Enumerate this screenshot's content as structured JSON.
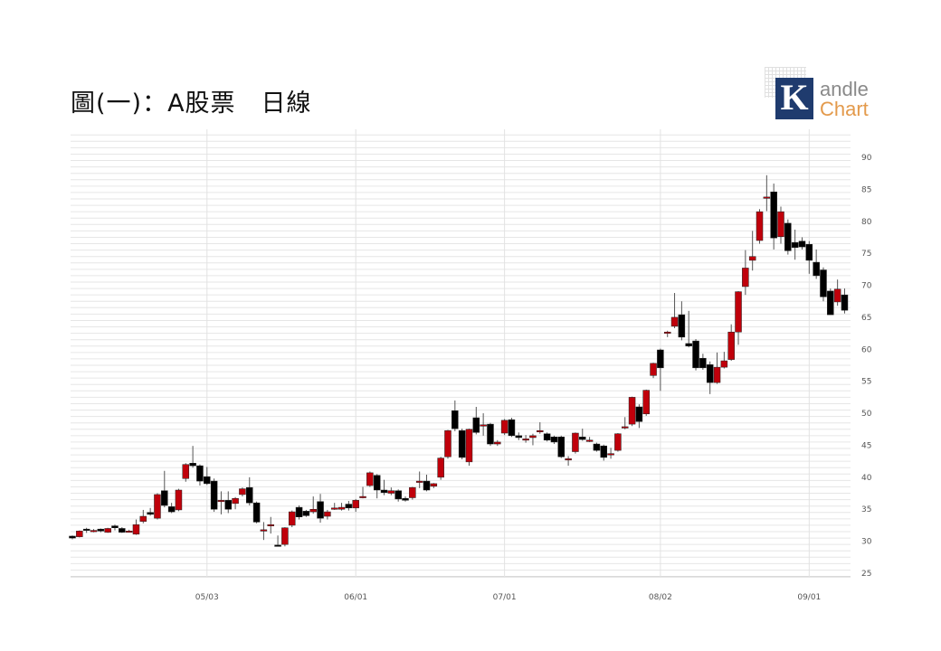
{
  "title": "圖(一)：A股票　日線",
  "logo": {
    "k": "K",
    "word1": "andle",
    "word2": "Chart"
  },
  "chart_data": {
    "type": "candlestick",
    "title": "圖(一)：A股票　日線",
    "ylim": [
      25,
      90
    ],
    "yticks": [
      25,
      30,
      35,
      40,
      45,
      50,
      55,
      60,
      65,
      70,
      75,
      80,
      85,
      90
    ],
    "y_axis_side": "right",
    "grid": true,
    "colors": {
      "up": "#c0000b",
      "down": "#000000",
      "grid": "#e6e6e6"
    },
    "xticks": [
      {
        "label": "05/03",
        "index": 19
      },
      {
        "label": "06/01",
        "index": 40
      },
      {
        "label": "07/01",
        "index": 61
      },
      {
        "label": "08/02",
        "index": 83
      },
      {
        "label": "09/01",
        "index": 104
      }
    ],
    "candles_ohlc": [
      [
        30.8,
        30.9,
        30.3,
        30.5
      ],
      [
        30.7,
        31.7,
        30.6,
        31.6
      ],
      [
        31.9,
        32.1,
        31.3,
        31.7
      ],
      [
        31.6,
        31.9,
        31.4,
        31.7
      ],
      [
        31.9,
        32.0,
        31.4,
        31.6
      ],
      [
        31.4,
        32.1,
        31.3,
        32.0
      ],
      [
        32.4,
        32.6,
        31.7,
        32.1
      ],
      [
        32.0,
        32.2,
        31.3,
        31.4
      ],
      [
        31.6,
        31.8,
        31.4,
        31.6
      ],
      [
        31.1,
        33.4,
        31.0,
        32.6
      ],
      [
        33.1,
        34.9,
        32.8,
        33.9
      ],
      [
        34.5,
        35.2,
        34.0,
        34.2
      ],
      [
        33.6,
        37.5,
        33.4,
        37.3
      ],
      [
        37.9,
        41.0,
        35.3,
        35.6
      ],
      [
        35.4,
        36.0,
        34.4,
        34.6
      ],
      [
        34.9,
        38.2,
        34.7,
        38.0
      ],
      [
        39.8,
        42.2,
        39.3,
        42.0
      ],
      [
        42.2,
        44.9,
        41.5,
        41.8
      ],
      [
        41.8,
        42.0,
        38.7,
        39.4
      ],
      [
        40.1,
        41.6,
        38.8,
        39.0
      ],
      [
        39.4,
        39.8,
        34.6,
        35.0
      ],
      [
        36.4,
        37.8,
        34.2,
        36.4
      ],
      [
        36.4,
        37.8,
        34.4,
        35.0
      ],
      [
        35.9,
        36.9,
        35.0,
        36.7
      ],
      [
        37.3,
        38.4,
        37.0,
        38.2
      ],
      [
        38.4,
        40.0,
        35.6,
        36.0
      ],
      [
        36.0,
        36.2,
        32.8,
        33.0
      ],
      [
        31.8,
        33.0,
        30.2,
        31.8
      ],
      [
        32.6,
        33.8,
        31.2,
        32.6
      ],
      [
        29.4,
        30.9,
        29.3,
        29.3
      ],
      [
        29.5,
        32.2,
        29.2,
        32.1
      ],
      [
        32.5,
        34.8,
        32.2,
        34.6
      ],
      [
        35.3,
        35.6,
        33.4,
        33.8
      ],
      [
        34.7,
        34.9,
        33.8,
        34.0
      ],
      [
        34.6,
        37.0,
        34.3,
        35.0
      ],
      [
        36.2,
        37.4,
        32.9,
        33.6
      ],
      [
        33.9,
        34.9,
        33.4,
        34.6
      ],
      [
        35.2,
        36.0,
        34.9,
        35.2
      ],
      [
        35.0,
        36.0,
        34.8,
        35.3
      ],
      [
        35.8,
        36.3,
        34.8,
        35.2
      ],
      [
        35.2,
        36.6,
        34.6,
        36.4
      ],
      [
        37.0,
        38.5,
        36.7,
        37.0
      ],
      [
        38.7,
        40.9,
        38.5,
        40.7
      ],
      [
        40.3,
        40.5,
        36.7,
        38.0
      ],
      [
        38.0,
        39.6,
        37.2,
        37.6
      ],
      [
        37.5,
        38.4,
        37.2,
        37.9
      ],
      [
        37.9,
        38.1,
        36.2,
        36.6
      ],
      [
        36.7,
        37.0,
        36.2,
        36.4
      ],
      [
        36.8,
        38.5,
        36.5,
        38.4
      ],
      [
        39.4,
        40.9,
        38.3,
        39.4
      ],
      [
        39.4,
        40.4,
        37.8,
        38.0
      ],
      [
        38.6,
        39.1,
        38.3,
        39.0
      ],
      [
        40.0,
        43.2,
        39.6,
        43.0
      ],
      [
        43.2,
        47.4,
        42.9,
        47.3
      ],
      [
        50.4,
        52.0,
        47.2,
        47.6
      ],
      [
        47.3,
        47.6,
        42.8,
        43.1
      ],
      [
        42.4,
        47.6,
        41.8,
        47.5
      ],
      [
        49.3,
        51.0,
        46.7,
        47.0
      ],
      [
        48.2,
        50.0,
        46.5,
        48.2
      ],
      [
        48.3,
        48.5,
        44.9,
        45.2
      ],
      [
        45.2,
        45.8,
        44.9,
        45.5
      ],
      [
        46.9,
        49.1,
        46.6,
        48.9
      ],
      [
        49.0,
        49.3,
        46.3,
        46.5
      ],
      [
        46.5,
        47.0,
        45.8,
        46.2
      ],
      [
        46.0,
        46.6,
        45.4,
        46.0
      ],
      [
        46.2,
        46.8,
        45.0,
        46.5
      ],
      [
        47.3,
        48.6,
        46.8,
        47.3
      ],
      [
        46.8,
        47.0,
        45.6,
        45.8
      ],
      [
        46.3,
        46.5,
        45.2,
        45.5
      ],
      [
        46.3,
        46.5,
        43.0,
        43.2
      ],
      [
        42.9,
        43.3,
        41.8,
        42.9
      ],
      [
        44.0,
        47.0,
        43.7,
        46.9
      ],
      [
        46.3,
        47.6,
        45.7,
        45.9
      ],
      [
        45.8,
        46.3,
        45.5,
        45.8
      ],
      [
        45.2,
        45.4,
        44.0,
        44.2
      ],
      [
        44.9,
        45.1,
        42.6,
        43.1
      ],
      [
        43.7,
        44.6,
        42.9,
        43.7
      ],
      [
        44.2,
        46.9,
        44.0,
        46.8
      ],
      [
        47.9,
        49.4,
        47.5,
        47.9
      ],
      [
        48.3,
        52.6,
        48.0,
        52.5
      ],
      [
        51.0,
        51.4,
        47.7,
        48.7
      ],
      [
        49.9,
        53.7,
        49.6,
        53.6
      ],
      [
        55.9,
        57.9,
        55.5,
        57.8
      ],
      [
        59.9,
        60.1,
        53.5,
        57.1
      ],
      [
        62.7,
        62.9,
        61.9,
        62.7
      ],
      [
        63.6,
        68.8,
        63.3,
        65.0
      ],
      [
        65.4,
        67.5,
        61.4,
        61.9
      ],
      [
        60.9,
        66.0,
        60.3,
        60.5
      ],
      [
        61.3,
        61.6,
        56.7,
        57.1
      ],
      [
        58.6,
        59.3,
        56.8,
        57.1
      ],
      [
        57.6,
        58.1,
        53.0,
        54.8
      ],
      [
        54.8,
        59.5,
        54.6,
        57.2
      ],
      [
        57.2,
        59.6,
        57.0,
        58.2
      ],
      [
        58.4,
        63.9,
        58.2,
        62.7
      ],
      [
        62.7,
        69.1,
        60.7,
        69.0
      ],
      [
        69.8,
        75.5,
        68.5,
        72.7
      ],
      [
        73.9,
        78.5,
        72.3,
        74.5
      ],
      [
        77.0,
        81.9,
        76.5,
        81.5
      ],
      [
        83.8,
        87.2,
        81.6,
        83.8
      ],
      [
        84.6,
        85.9,
        75.6,
        77.4
      ],
      [
        77.6,
        82.3,
        76.5,
        81.5
      ],
      [
        79.7,
        80.3,
        74.8,
        75.4
      ],
      [
        76.7,
        78.7,
        74.0,
        75.9
      ],
      [
        76.9,
        77.5,
        75.6,
        76.0
      ],
      [
        76.4,
        76.9,
        71.8,
        73.9
      ],
      [
        73.6,
        75.6,
        71.0,
        71.5
      ],
      [
        72.4,
        72.8,
        67.5,
        68.2
      ],
      [
        69.1,
        69.5,
        65.4,
        65.4
      ],
      [
        67.4,
        70.9,
        66.8,
        69.4
      ],
      [
        68.5,
        69.5,
        65.6,
        66.1
      ]
    ]
  }
}
